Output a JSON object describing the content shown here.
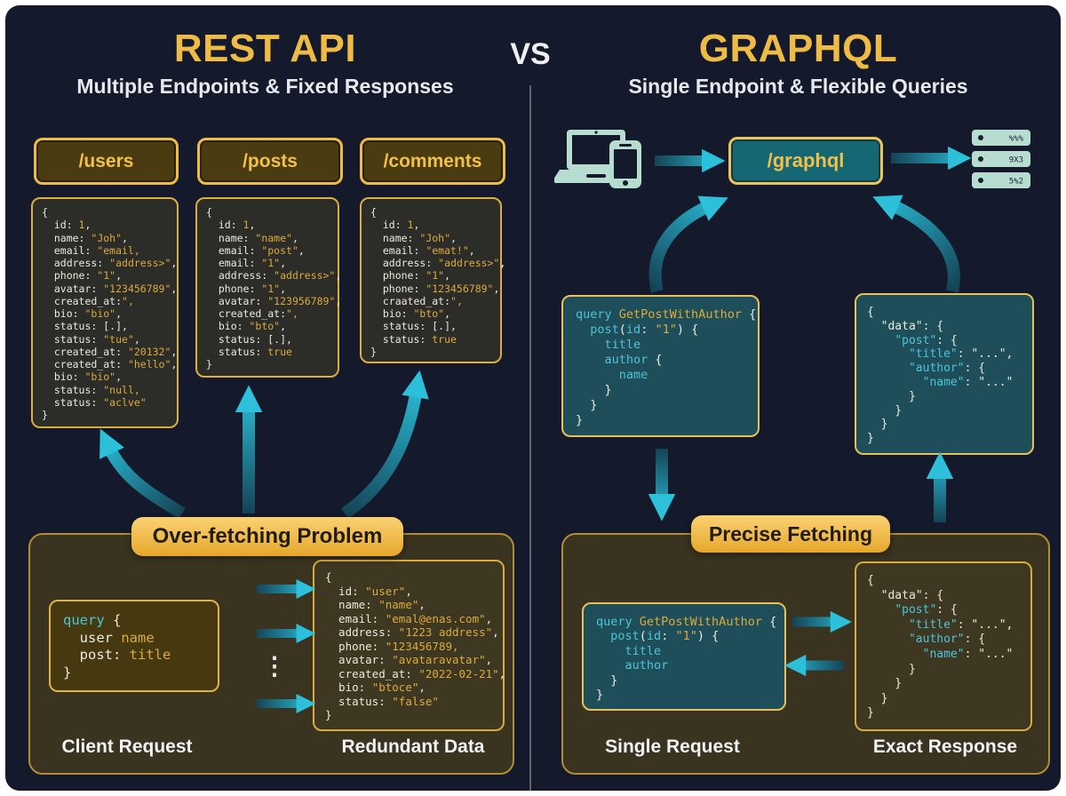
{
  "header": {
    "left_title": "REST API",
    "left_subtitle": "Multiple Endpoints & Fixed Responses",
    "vs": "VS",
    "right_title": "GRAPHQL",
    "right_subtitle": "Single Endpoint & Flexible Queries"
  },
  "rest": {
    "endpoints": [
      "/users",
      "/posts",
      "/comments"
    ],
    "problem_label": "Over-fetching Problem",
    "client_label": "Client Request",
    "redundant_label": "Redundant Data",
    "ellipsis": "⋮",
    "response_blocks": [
      {
        "lines": [
          [
            [
              "w",
              "{"
            ]
          ],
          [
            [
              "w",
              "  id: "
            ],
            [
              "g",
              "1"
            ],
            [
              "w",
              ","
            ]
          ],
          [
            [
              "w",
              "  name: "
            ],
            [
              "g",
              "\"Joh\""
            ],
            [
              "w",
              ","
            ]
          ],
          [
            [
              "w",
              "  email: "
            ],
            [
              "g",
              "\"email,"
            ]
          ],
          [
            [
              "w",
              "  address: "
            ],
            [
              "g",
              "\"address>\""
            ],
            [
              "w",
              ","
            ]
          ],
          [
            [
              "w",
              "  phone: "
            ],
            [
              "g",
              "\"1\""
            ],
            [
              "w",
              ","
            ]
          ],
          [
            [
              "w",
              "  avatar: "
            ],
            [
              "g",
              "\"123456789\""
            ],
            [
              "w",
              ","
            ]
          ],
          [
            [
              "w",
              "  created_at:"
            ],
            [
              "g",
              "\","
            ]
          ],
          [
            [
              "w",
              "  bio: "
            ],
            [
              "g",
              "\"bio\""
            ],
            [
              "w",
              ","
            ]
          ],
          [
            [
              "w",
              "  status: [.],"
            ]
          ],
          [
            [
              "w",
              "  status: "
            ],
            [
              "g",
              "\"tue\""
            ],
            [
              "w",
              ","
            ]
          ],
          [
            [
              "w",
              "  created_at: "
            ],
            [
              "g",
              "\"20132\""
            ],
            [
              "w",
              ","
            ]
          ],
          [
            [
              "w",
              "  created_at: "
            ],
            [
              "g",
              "\"hello\""
            ],
            [
              "w",
              ","
            ]
          ],
          [
            [
              "w",
              "  bio: "
            ],
            [
              "g",
              "\"bio\""
            ],
            [
              "w",
              ","
            ]
          ],
          [
            [
              "w",
              "  status: "
            ],
            [
              "g",
              "\"null,"
            ]
          ],
          [
            [
              "w",
              "  status: "
            ],
            [
              "g",
              "\"aclve\""
            ]
          ],
          [
            [
              "w",
              "}"
            ]
          ]
        ]
      },
      {
        "lines": [
          [
            [
              "w",
              "{"
            ]
          ],
          [
            [
              "w",
              "  id: "
            ],
            [
              "g",
              "1"
            ],
            [
              "w",
              ","
            ]
          ],
          [
            [
              "w",
              "  name: "
            ],
            [
              "g",
              "\"name\""
            ],
            [
              "w",
              ","
            ]
          ],
          [
            [
              "w",
              "  email: "
            ],
            [
              "g",
              "\"post\""
            ],
            [
              "w",
              ","
            ]
          ],
          [
            [
              "w",
              "  email: "
            ],
            [
              "g",
              "\"1\""
            ],
            [
              "w",
              ","
            ]
          ],
          [
            [
              "w",
              "  address: "
            ],
            [
              "g",
              "\"address>\""
            ],
            [
              "w",
              ","
            ]
          ],
          [
            [
              "w",
              "  phone: "
            ],
            [
              "g",
              "\"1\""
            ],
            [
              "w",
              ","
            ]
          ],
          [
            [
              "w",
              "  avatar: "
            ],
            [
              "g",
              "\"123956789\""
            ],
            [
              "w",
              ","
            ]
          ],
          [
            [
              "w",
              "  created_at:"
            ],
            [
              "g",
              "\","
            ]
          ],
          [
            [
              "w",
              "  bio: "
            ],
            [
              "g",
              "\"bto\""
            ],
            [
              "w",
              ","
            ]
          ],
          [
            [
              "w",
              "  status: [.],"
            ]
          ],
          [
            [
              "w",
              "  status: "
            ],
            [
              "g",
              "true"
            ]
          ],
          [
            [
              "w",
              "}"
            ]
          ]
        ]
      },
      {
        "lines": [
          [
            [
              "w",
              "{"
            ]
          ],
          [
            [
              "w",
              "  id: "
            ],
            [
              "g",
              "1"
            ],
            [
              "w",
              ","
            ]
          ],
          [
            [
              "w",
              "  name: "
            ],
            [
              "g",
              "\"Joh\""
            ],
            [
              "w",
              ","
            ]
          ],
          [
            [
              "w",
              "  email: "
            ],
            [
              "g",
              "\"emat!\""
            ],
            [
              "w",
              ","
            ]
          ],
          [
            [
              "w",
              "  address: "
            ],
            [
              "g",
              "\"address>\""
            ],
            [
              "w",
              ","
            ]
          ],
          [
            [
              "w",
              "  phone: "
            ],
            [
              "g",
              "\"1\""
            ],
            [
              "w",
              ","
            ]
          ],
          [
            [
              "w",
              "  phone: "
            ],
            [
              "g",
              "\"123456789\""
            ],
            [
              "w",
              ","
            ]
          ],
          [
            [
              "w",
              "  craated_at:"
            ],
            [
              "g",
              "\","
            ]
          ],
          [
            [
              "w",
              "  bio: "
            ],
            [
              "g",
              "\"bto\""
            ],
            [
              "w",
              ","
            ]
          ],
          [
            [
              "w",
              "  status: [.],"
            ]
          ],
          [
            [
              "w",
              "  status: "
            ],
            [
              "g",
              "true"
            ]
          ],
          [
            [
              "w",
              "}"
            ]
          ]
        ]
      }
    ],
    "client_request": {
      "lines": [
        [
          [
            "c",
            "query"
          ],
          [
            "w",
            " {"
          ]
        ],
        [
          [
            "w",
            "  user "
          ],
          [
            "g",
            "name"
          ]
        ],
        [
          [
            "w",
            "  post: "
          ],
          [
            "g",
            "title"
          ]
        ],
        [
          [
            "w",
            "}"
          ]
        ]
      ]
    },
    "redundant_data": {
      "lines": [
        [
          [
            "w",
            "{"
          ]
        ],
        [
          [
            "w",
            "  id: "
          ],
          [
            "g",
            "\"user\""
          ],
          [
            "w",
            ","
          ]
        ],
        [
          [
            "w",
            "  name: "
          ],
          [
            "g",
            "\"name\""
          ],
          [
            "w",
            ","
          ]
        ],
        [
          [
            "w",
            "  email: "
          ],
          [
            "g",
            "\"emal@enas.com\""
          ],
          [
            "w",
            ","
          ]
        ],
        [
          [
            "w",
            "  address: "
          ],
          [
            "g",
            "\"1223 address\""
          ],
          [
            "w",
            ","
          ]
        ],
        [
          [
            "w",
            "  phone: "
          ],
          [
            "g",
            "\"123456789,"
          ]
        ],
        [
          [
            "w",
            "  avatar: "
          ],
          [
            "g",
            "\"avataravatar\""
          ],
          [
            "w",
            ","
          ]
        ],
        [
          [
            "w",
            "  created_at: "
          ],
          [
            "g",
            "\"2022-02-21\""
          ],
          [
            "w",
            ","
          ]
        ],
        [
          [
            "w",
            "  bio: "
          ],
          [
            "g",
            "\"btoce\""
          ],
          [
            "w",
            ","
          ]
        ],
        [
          [
            "w",
            "  status: "
          ],
          [
            "g",
            "\"false\""
          ]
        ],
        [
          [
            "w",
            "}"
          ]
        ]
      ]
    }
  },
  "graphql": {
    "endpoint": "/graphql",
    "fetch_label": "Precise Fetching",
    "single_label": "Single Request",
    "exact_label": "Exact Response",
    "server_rows": [
      "%%%",
      "9X3",
      "5%2"
    ],
    "query_block": {
      "lines": [
        [
          [
            "c",
            "query "
          ],
          [
            "g",
            "GetPostWithAuthor "
          ],
          [
            "w",
            "{"
          ]
        ],
        [
          [
            "w",
            "  "
          ],
          [
            "c",
            "post"
          ],
          [
            "w",
            "("
          ],
          [
            "c",
            "id"
          ],
          [
            "w",
            ": "
          ],
          [
            "g",
            "\"1\""
          ],
          [
            "w",
            ") {"
          ]
        ],
        [
          [
            "c",
            "    title"
          ]
        ],
        [
          [
            "c",
            "    author "
          ],
          [
            "w",
            "{"
          ]
        ],
        [
          [
            "c",
            "      name"
          ]
        ],
        [
          [
            "w",
            "    }"
          ]
        ],
        [
          [
            "w",
            "  }"
          ]
        ],
        [
          [
            "w",
            "}"
          ]
        ]
      ]
    },
    "response_block": {
      "lines": [
        [
          [
            "w",
            "{"
          ]
        ],
        [
          [
            "w",
            "  \"data\": {"
          ]
        ],
        [
          [
            "w",
            "    "
          ],
          [
            "c",
            "\"post\""
          ],
          [
            "w",
            ": {"
          ]
        ],
        [
          [
            "w",
            "      "
          ],
          [
            "c",
            "\"title\""
          ],
          [
            "w",
            ": \"...\","
          ]
        ],
        [
          [
            "w",
            "      "
          ],
          [
            "c",
            "\"author\""
          ],
          [
            "w",
            ": {"
          ]
        ],
        [
          [
            "w",
            "        "
          ],
          [
            "c",
            "\"name\""
          ],
          [
            "w",
            ": \"...\""
          ]
        ],
        [
          [
            "w",
            "      }"
          ]
        ],
        [
          [
            "w",
            "    }"
          ]
        ],
        [
          [
            "w",
            "  }"
          ]
        ],
        [
          [
            "w",
            "}"
          ]
        ]
      ]
    },
    "single_request": {
      "lines": [
        [
          [
            "c",
            "query "
          ],
          [
            "g",
            "GetPostWithAuthor "
          ],
          [
            "w",
            "{"
          ]
        ],
        [
          [
            "w",
            "  "
          ],
          [
            "c",
            "post"
          ],
          [
            "w",
            "("
          ],
          [
            "c",
            "id"
          ],
          [
            "w",
            ": "
          ],
          [
            "g",
            "\"1\""
          ],
          [
            "w",
            ") {"
          ]
        ],
        [
          [
            "c",
            "    title"
          ]
        ],
        [
          [
            "c",
            "    author"
          ]
        ],
        [
          [
            "w",
            "  }"
          ]
        ],
        [
          [
            "w",
            "}"
          ]
        ]
      ]
    },
    "exact_response": {
      "lines": [
        [
          [
            "w",
            "{"
          ]
        ],
        [
          [
            "w",
            "  \"data\": {"
          ]
        ],
        [
          [
            "w",
            "    "
          ],
          [
            "c",
            "\"post\""
          ],
          [
            "w",
            ": {"
          ]
        ],
        [
          [
            "w",
            "      "
          ],
          [
            "c",
            "\"title\""
          ],
          [
            "w",
            ": \"...\","
          ]
        ],
        [
          [
            "w",
            "      "
          ],
          [
            "c",
            "\"author\""
          ],
          [
            "w",
            ": {"
          ]
        ],
        [
          [
            "w",
            "        "
          ],
          [
            "c",
            "\"name\""
          ],
          [
            "w",
            ": \"...\""
          ]
        ],
        [
          [
            "w",
            "      }"
          ]
        ],
        [
          [
            "w",
            "    }"
          ]
        ],
        [
          [
            "w",
            "  }"
          ]
        ],
        [
          [
            "w",
            "}"
          ]
        ]
      ]
    }
  },
  "colors": {
    "background": "#141a2c",
    "gold": "#eebb45",
    "cyan": "#4fc4d8",
    "arrow_bright": "#2abfd9",
    "arrow_dark": "#154355",
    "mint": "#b7ddd1"
  }
}
